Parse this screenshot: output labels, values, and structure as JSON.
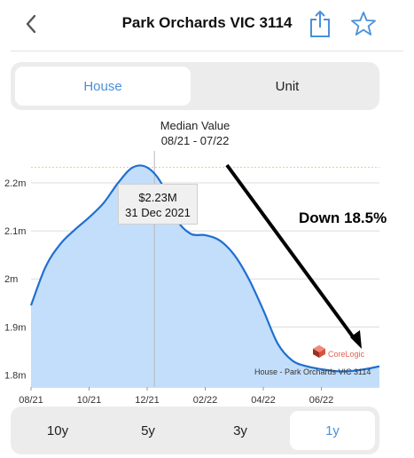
{
  "header": {
    "title": "Park Orchards VIC 3114"
  },
  "icons": {
    "back": "chevron-left-icon",
    "share": "share-icon",
    "favorite": "star-icon"
  },
  "property_type": {
    "options": [
      "House",
      "Unit"
    ],
    "selected": "House"
  },
  "chart_data": {
    "type": "area",
    "title": "Median Value",
    "subtitle": "08/21 - 07/22",
    "x_tick_labels": [
      "08/21",
      "10/21",
      "12/21",
      "02/22",
      "04/22",
      "06/22"
    ],
    "y_tick_labels": [
      "2.2m",
      "2.1m",
      "2m",
      "1.9m",
      "1.8m"
    ],
    "y_ticks": [
      2.2,
      2.1,
      2.0,
      1.9,
      1.8
    ],
    "ylim": [
      1.775,
      2.285
    ],
    "xlim": [
      0,
      12
    ],
    "series": [
      {
        "x": [
          0,
          0.5,
          1,
          1.5,
          2,
          2.5,
          3,
          3.5,
          4,
          4.5,
          5,
          5.5,
          6,
          6.5,
          7,
          7.5,
          8,
          8.5,
          9,
          9.5,
          10,
          10.5,
          11,
          11.5,
          12
        ],
        "values": [
          1.945,
          2.025,
          2.072,
          2.102,
          2.128,
          2.158,
          2.2,
          2.232,
          2.232,
          2.198,
          2.125,
          2.094,
          2.091,
          2.08,
          2.05,
          2.0,
          1.935,
          1.865,
          1.83,
          1.818,
          1.812,
          1.808,
          1.808,
          1.812,
          1.818
        ]
      }
    ],
    "highlight": {
      "value_label": "$2.23M",
      "date_label": "31 Dec 2021",
      "x": 4.25,
      "value": 2.232
    },
    "reference_line": 2.232,
    "colors": {
      "line": "#1f6fd1",
      "fill": "#c3defa",
      "reference": "#f4c48a",
      "grid": "#dcdcdc"
    }
  },
  "annotation": {
    "text": "Down 18.5%"
  },
  "watermark": {
    "text": "CoreLogic",
    "note": "House - Park Orchards VIC 3114"
  },
  "time_range": {
    "options": [
      "10y",
      "5y",
      "3y",
      "1y"
    ],
    "selected": "1y"
  }
}
